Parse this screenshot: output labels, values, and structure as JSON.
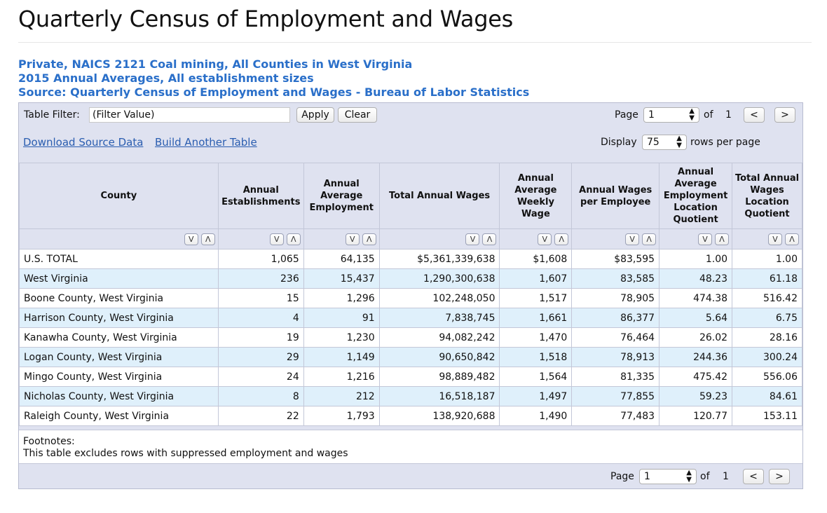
{
  "page_title": "Quarterly Census of Employment and Wages",
  "subtitles": [
    "Private, NAICS 2121 Coal mining, All Counties in West Virginia",
    "2015 Annual Averages, All establishment sizes",
    "Source: Quarterly Census of Employment and Wages - Bureau of Labor Statistics"
  ],
  "controls": {
    "filter_label": "Table Filter:",
    "filter_value": "(Filter Value)",
    "apply_label": "Apply",
    "clear_label": "Clear",
    "page_label": "Page",
    "page_value": "1",
    "of_label": "of",
    "page_total": "1",
    "prev_label": "<",
    "next_label": ">",
    "download_link": "Download Source Data",
    "build_link": "Build Another Table",
    "display_label": "Display",
    "display_value": "75",
    "rows_per_page_label": "rows per page"
  },
  "sort": {
    "desc_label": "V",
    "asc_label": "Λ"
  },
  "table": {
    "headers": [
      "County",
      "Annual Establishments",
      "Annual Average Employment",
      "Total Annual Wages",
      "Annual Average Weekly Wage",
      "Annual Wages per Employee",
      "Annual Average Employment Location Quotient",
      "Total Annual Wages Location Quotient"
    ],
    "rows": [
      [
        "U.S. TOTAL",
        "1,065",
        "64,135",
        "$5,361,339,638",
        "$1,608",
        "$83,595",
        "1.00",
        "1.00"
      ],
      [
        "West Virginia",
        "236",
        "15,437",
        "1,290,300,638",
        "1,607",
        "83,585",
        "48.23",
        "61.18"
      ],
      [
        "Boone County, West Virginia",
        "15",
        "1,296",
        "102,248,050",
        "1,517",
        "78,905",
        "474.38",
        "516.42"
      ],
      [
        "Harrison County, West Virginia",
        "4",
        "91",
        "7,838,745",
        "1,661",
        "86,377",
        "5.64",
        "6.75"
      ],
      [
        "Kanawha County, West Virginia",
        "19",
        "1,230",
        "94,082,242",
        "1,470",
        "76,464",
        "26.02",
        "28.16"
      ],
      [
        "Logan County, West Virginia",
        "29",
        "1,149",
        "90,650,842",
        "1,518",
        "78,913",
        "244.36",
        "300.24"
      ],
      [
        "Mingo County, West Virginia",
        "24",
        "1,216",
        "98,889,482",
        "1,564",
        "81,335",
        "475.42",
        "556.06"
      ],
      [
        "Nicholas County, West Virginia",
        "8",
        "212",
        "16,518,187",
        "1,497",
        "77,855",
        "59.23",
        "84.61"
      ],
      [
        "Raleigh County, West Virginia",
        "22",
        "1,793",
        "138,920,688",
        "1,490",
        "77,483",
        "120.77",
        "153.11"
      ]
    ]
  },
  "footnotes": {
    "title": "Footnotes:",
    "text": "This table excludes rows with suppressed employment and wages"
  }
}
